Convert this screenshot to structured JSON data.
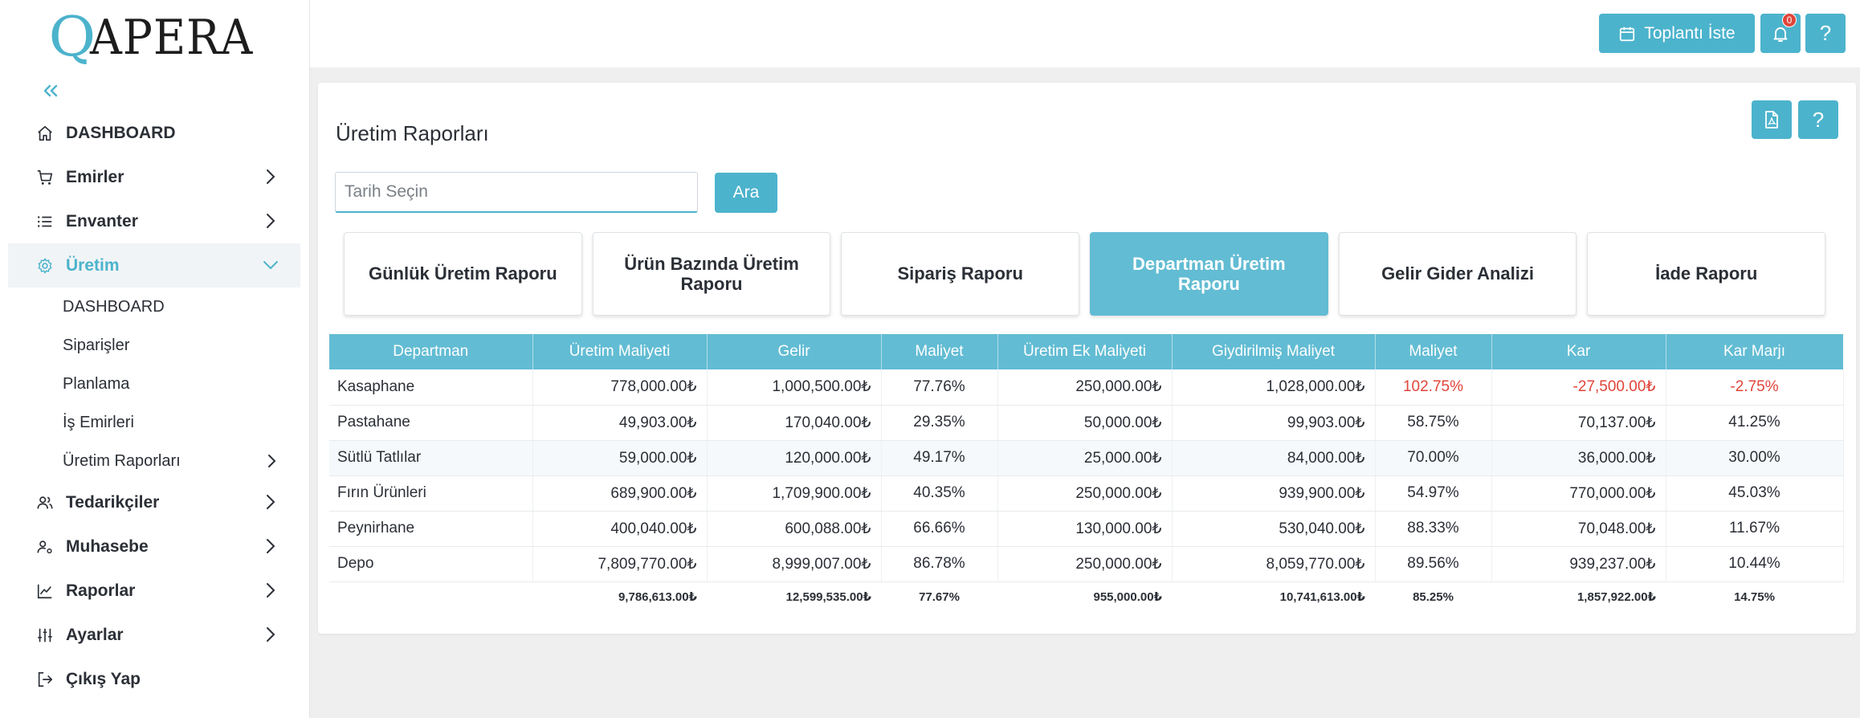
{
  "brand": {
    "logo_q": "Q",
    "logo_rest": "APERA",
    "accent": "#4cb3cc"
  },
  "sidebar": {
    "collapse_icon": "double-chevron-left-icon",
    "items": [
      {
        "label": "DASHBOARD",
        "icon": "home-icon"
      },
      {
        "label": "Emirler",
        "icon": "cart-icon"
      },
      {
        "label": "Envanter",
        "icon": "list-icon"
      },
      {
        "label": "Üretim",
        "icon": "gear-icon"
      },
      {
        "label": "Tedarikçiler",
        "icon": "users-icon"
      },
      {
        "label": "Muhasebe",
        "icon": "user-cog-icon"
      },
      {
        "label": "Raporlar",
        "icon": "chart-line-icon"
      },
      {
        "label": "Ayarlar",
        "icon": "sliders-icon"
      },
      {
        "label": "Çıkış Yap",
        "icon": "logout-icon"
      }
    ],
    "subitems": [
      {
        "label": "DASHBOARD"
      },
      {
        "label": "Siparişler"
      },
      {
        "label": "Planlama"
      },
      {
        "label": "İş Emirleri"
      },
      {
        "label": "Üretim Raporları"
      }
    ]
  },
  "topbar": {
    "meeting_label": "Toplantı İste",
    "notification_count": "0",
    "help_label": "?"
  },
  "page": {
    "title": "Üretim Raporları",
    "help_label": "?",
    "date_placeholder": "Tarih Seçin",
    "search_label": "Ara"
  },
  "report_tabs": [
    {
      "label": "Günlük Üretim Raporu"
    },
    {
      "label": "Ürün Bazında Üretim Raporu"
    },
    {
      "label": "Sipariş Raporu"
    },
    {
      "label": "Departman Üretim Raporu"
    },
    {
      "label": "Gelir Gider Analizi"
    },
    {
      "label": "İade Raporu"
    }
  ],
  "table": {
    "headers": [
      "Departman",
      "Üretim Maliyeti",
      "Gelir",
      "Maliyet",
      "Üretim Ek Maliyeti",
      "Giydirilmiş Maliyet",
      "Maliyet",
      "Kar",
      "Kar Marjı"
    ],
    "rows": [
      [
        "Kasaphane",
        "778,000.00₺",
        "1,000,500.00₺",
        "77.76%",
        "250,000.00₺",
        "1,028,000.00₺",
        "102.75%",
        "-27,500.00₺",
        "-2.75%"
      ],
      [
        "Pastahane",
        "49,903.00₺",
        "170,040.00₺",
        "29.35%",
        "50,000.00₺",
        "99,903.00₺",
        "58.75%",
        "70,137.00₺",
        "41.25%"
      ],
      [
        "Sütlü Tatlılar",
        "59,000.00₺",
        "120,000.00₺",
        "49.17%",
        "25,000.00₺",
        "84,000.00₺",
        "70.00%",
        "36,000.00₺",
        "30.00%"
      ],
      [
        "Fırın Ürünleri",
        "689,900.00₺",
        "1,709,900.00₺",
        "40.35%",
        "250,000.00₺",
        "939,900.00₺",
        "54.97%",
        "770,000.00₺",
        "45.03%"
      ],
      [
        "Peynirhane",
        "400,040.00₺",
        "600,088.00₺",
        "66.66%",
        "130,000.00₺",
        "530,040.00₺",
        "88.33%",
        "70,048.00₺",
        "11.67%"
      ],
      [
        "Depo",
        "7,809,770.00₺",
        "8,999,007.00₺",
        "86.78%",
        "250,000.00₺",
        "8,059,770.00₺",
        "89.56%",
        "939,237.00₺",
        "10.44%"
      ]
    ],
    "totals": [
      "",
      "9,786,613.00₺",
      "12,599,535.00₺",
      "77.67%",
      "955,000.00₺",
      "10,741,613.00₺",
      "85.25%",
      "1,857,922.00₺",
      "14.75%"
    ]
  }
}
